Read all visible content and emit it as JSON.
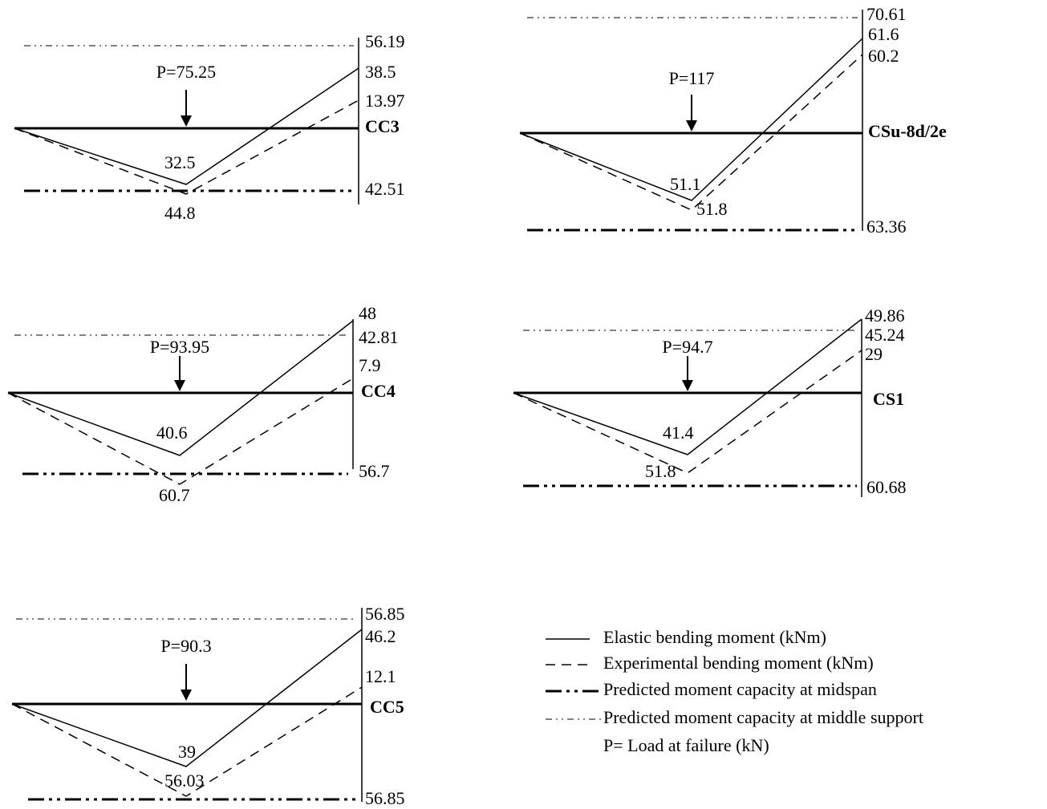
{
  "panels": [
    {
      "name": "CC3",
      "load": "P=75.25",
      "labels": {
        "support_capacity": 56.19,
        "elastic_support": 38.5,
        "experimental_support": 13.97,
        "elastic_midspan": 32.5,
        "experimental_midspan": 44.8,
        "midspan_capacity": 42.51
      }
    },
    {
      "name": "CSu-8d/2e",
      "load": "P=117",
      "labels": {
        "support_capacity": 70.61,
        "elastic_support": 61.6,
        "experimental_support": 60.2,
        "elastic_midspan": 51.1,
        "experimental_midspan": 51.8,
        "midspan_capacity": 63.36
      }
    },
    {
      "name": "CC4",
      "load": "P=93.95",
      "labels": {
        "support_capacity": 42.81,
        "elastic_support": 48,
        "experimental_support": 7.9,
        "elastic_midspan": 40.6,
        "experimental_midspan": 60.7,
        "midspan_capacity": 56.7
      }
    },
    {
      "name": "CS1",
      "load": "P=94.7",
      "labels": {
        "support_capacity": 45.24,
        "elastic_support": 49.86,
        "experimental_support": 29,
        "elastic_midspan": 41.4,
        "experimental_midspan": 51.8,
        "midspan_capacity": 60.68
      }
    },
    {
      "name": "CC5",
      "load": "P=90.3",
      "labels": {
        "support_capacity": 56.85,
        "elastic_support": 46.2,
        "experimental_support": 12.1,
        "elastic_midspan": 39,
        "experimental_midspan": 56.03,
        "midspan_capacity": 56.85
      }
    }
  ],
  "legend": [
    "Elastic bending moment (kNm)",
    "Experimental bending moment (kNm)",
    "Predicted moment capacity at midspan",
    "Predicted moment capacity at middle support",
    "P= Load at failure (kN)"
  ]
}
